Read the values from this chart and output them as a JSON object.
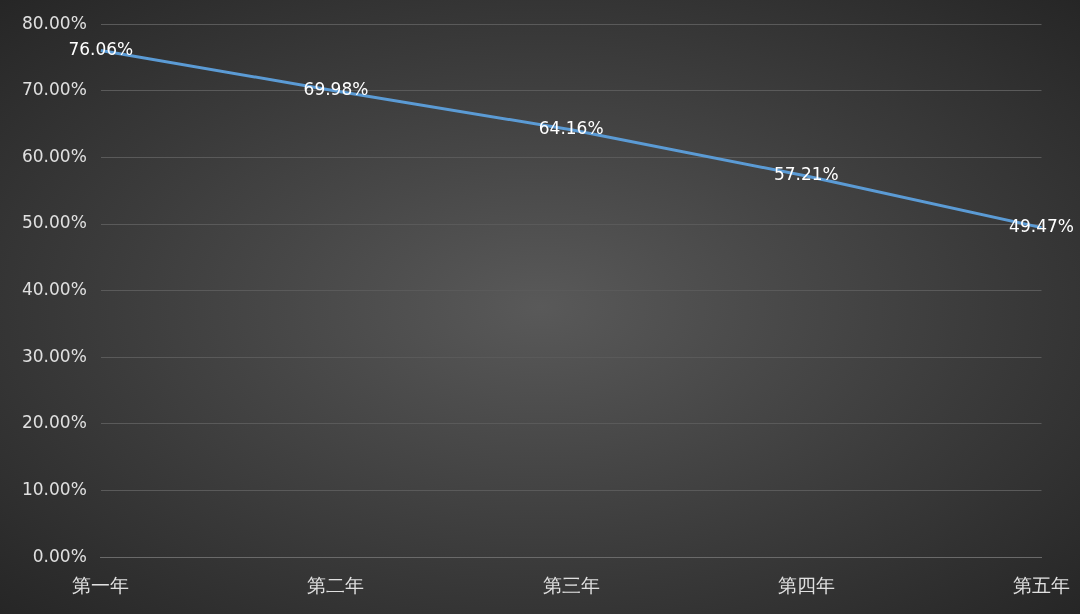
{
  "chart_data": {
    "type": "line",
    "categories": [
      "第一年",
      "第二年",
      "第三年",
      "第四年",
      "第五年"
    ],
    "series": [
      {
        "color": "#5b9bd5",
        "values": [
          76.06,
          69.98,
          64.16,
          57.21,
          49.47
        ],
        "value_labels": [
          "76.06%",
          "69.98%",
          "64.16%",
          "57.21%",
          "49.47%"
        ]
      }
    ],
    "ylim": [
      0,
      80
    ],
    "yticks": [
      {
        "value": 0,
        "label": "0.00%"
      },
      {
        "value": 10,
        "label": "10.00%"
      },
      {
        "value": 20,
        "label": "20.00%"
      },
      {
        "value": 30,
        "label": "30.00%"
      },
      {
        "value": 40,
        "label": "40.00%"
      },
      {
        "value": 50,
        "label": "50.00%"
      },
      {
        "value": 60,
        "label": "60.00%"
      },
      {
        "value": 70,
        "label": "70.00%"
      },
      {
        "value": 80,
        "label": "80.00%"
      }
    ],
    "grid": "y",
    "legend": false,
    "marker": "none",
    "line_style": "solid"
  }
}
